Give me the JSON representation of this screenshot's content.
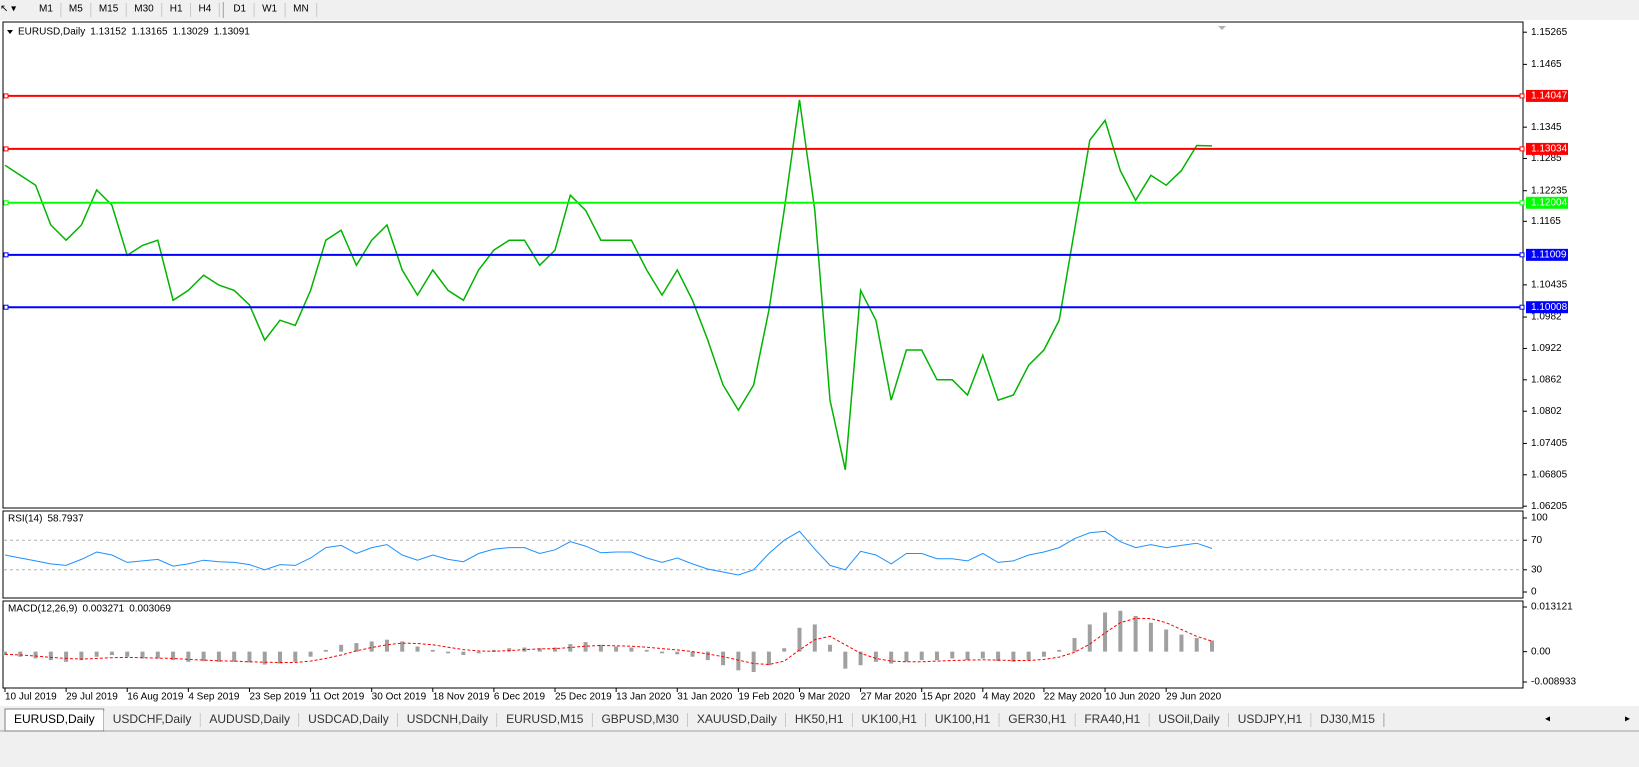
{
  "toolbar": {
    "timeframes": [
      "M1",
      "M5",
      "M15",
      "M30",
      "H1",
      "H4",
      "D1",
      "W1",
      "MN"
    ]
  },
  "chart_data": [
    {
      "type": "line",
      "title": "EURUSD,Daily",
      "ohlc": [
        1.13152,
        1.13165,
        1.13029,
        1.13091
      ],
      "categories": [
        "10 Jul 2019",
        null,
        null,
        null,
        "29 Jul 2019",
        null,
        null,
        null,
        "16 Aug 2019",
        null,
        null,
        null,
        "4 Sep 2019",
        null,
        null,
        null,
        "23 Sep 2019",
        null,
        null,
        null,
        "11 Oct 2019",
        null,
        null,
        null,
        "30 Oct 2019",
        null,
        null,
        null,
        "18 Nov 2019",
        null,
        null,
        null,
        "6 Dec 2019",
        null,
        null,
        null,
        "25 Dec 2019",
        null,
        null,
        null,
        "13 Jan 2020",
        null,
        null,
        null,
        "31 Jan 2020",
        null,
        null,
        null,
        "19 Feb 2020",
        null,
        null,
        null,
        "9 Mar 2020",
        null,
        null,
        null,
        "27 Mar 2020",
        null,
        null,
        null,
        "15 Apr 2020",
        null,
        null,
        null,
        "4 May 2020",
        null,
        null,
        null,
        "22 May 2020",
        null,
        null,
        null,
        "10 Jun 2020",
        null,
        null,
        null,
        "29 Jun 2020",
        null,
        null,
        null
      ],
      "series": [
        {
          "color": "#00b400",
          "values": [
            1.1272,
            1.1253,
            1.1234,
            1.1158,
            1.1129,
            1.1158,
            1.1225,
            1.1196,
            1.11,
            1.1119,
            1.1129,
            1.1014,
            1.1033,
            1.1062,
            1.1043,
            1.1033,
            1.1005,
            1.0938,
            1.0976,
            1.0966,
            1.1033,
            1.1129,
            1.1148,
            1.1081,
            1.1129,
            1.1158,
            1.1072,
            1.1024,
            1.1072,
            1.1033,
            1.1014,
            1.1072,
            1.111,
            1.1129,
            1.1129,
            1.1081,
            1.111,
            1.1215,
            1.1186,
            1.1129,
            1.1129,
            1.1129,
            1.1072,
            1.1024,
            1.1072,
            1.1014,
            1.0938,
            1.0852,
            1.0804,
            1.0852,
            1.0995,
            1.1186,
            1.1397,
            1.1186,
            1.0823,
            1.069,
            1.1033,
            1.0976,
            1.0823,
            1.0919,
            1.0919,
            1.0862,
            1.0862,
            1.0833,
            1.0909,
            1.0823,
            1.0833,
            1.089,
            1.0919,
            1.0976,
            1.1148,
            1.132,
            1.1358,
            1.1262,
            1.1205,
            1.1253,
            1.1234,
            1.1262,
            1.131,
            1.13091
          ]
        }
      ],
      "levels": [
        {
          "value": 1.14047,
          "color": "#ff0000"
        },
        {
          "value": 1.13034,
          "color": "#ff0000"
        },
        {
          "value": 1.12004,
          "color": "#00ff00"
        },
        {
          "value": 1.11009,
          "color": "#0000ff"
        },
        {
          "value": 1.10008,
          "color": "#0000ff"
        }
      ],
      "ylim": [
        1.0617,
        1.1546
      ],
      "yticks": [
        1.15265,
        1.1465,
        1.1345,
        1.1285,
        1.12235,
        1.1165,
        1.10435,
        1.0982,
        1.0922,
        1.0862,
        1.0802,
        1.07405,
        1.06805,
        1.06205
      ]
    },
    {
      "type": "line",
      "title": "RSI(14)",
      "current": 58.7937,
      "series": [
        {
          "color": "#1e90ff",
          "values": [
            50,
            46,
            42,
            38,
            36,
            44,
            54,
            50,
            40,
            42,
            44,
            35,
            38,
            43,
            41,
            40,
            37,
            30,
            37,
            36,
            46,
            60,
            63,
            52,
            60,
            64,
            50,
            43,
            50,
            44,
            41,
            52,
            58,
            60,
            60,
            52,
            57,
            68,
            62,
            53,
            54,
            54,
            46,
            40,
            46,
            38,
            31,
            27,
            23,
            30,
            52,
            70,
            82,
            58,
            36,
            30,
            55,
            50,
            38,
            52,
            52,
            45,
            45,
            42,
            52,
            40,
            42,
            50,
            54,
            60,
            72,
            80,
            82,
            68,
            60,
            64,
            60,
            63,
            66,
            58.7937
          ]
        }
      ],
      "ylim": [
        0,
        100
      ],
      "yticks": [
        100,
        70,
        30,
        0
      ],
      "levels": [
        70,
        30
      ]
    },
    {
      "type": "macd",
      "title": "MACD(12,26,9)",
      "current": [
        0.003271,
        0.003069
      ],
      "series": [
        {
          "color": "#a0a0a0",
          "values": [
            -0.001,
            -0.0015,
            -0.002,
            -0.0025,
            -0.003,
            -0.0025,
            -0.0015,
            -0.001,
            -0.0015,
            -0.002,
            -0.002,
            -0.0025,
            -0.003,
            -0.0028,
            -0.003,
            -0.003,
            -0.0032,
            -0.0038,
            -0.0035,
            -0.003,
            -0.0015,
            0.0005,
            0.002,
            0.0025,
            0.003,
            0.0035,
            0.003,
            0.0015,
            0.0005,
            -0.0005,
            -0.001,
            -0.0005,
            0.0005,
            0.001,
            0.0012,
            0.001,
            0.0012,
            0.0022,
            0.0028,
            0.002,
            0.0015,
            0.0012,
            0.0005,
            -0.0005,
            -0.0008,
            -0.0015,
            -0.0025,
            -0.004,
            -0.0055,
            -0.006,
            -0.004,
            0.001,
            0.007,
            0.008,
            0.002,
            -0.005,
            -0.004,
            -0.003,
            -0.0035,
            -0.003,
            -0.0025,
            -0.0025,
            -0.002,
            -0.0025,
            -0.002,
            -0.0028,
            -0.003,
            -0.0025,
            -0.0015,
            0.0005,
            0.004,
            0.008,
            0.0115,
            0.012,
            0.0105,
            0.0085,
            0.0065,
            0.005,
            0.004,
            0.003271
          ]
        },
        {
          "color": "#ff0000",
          "values": [
            -0.0008,
            -0.001,
            -0.0013,
            -0.0017,
            -0.002,
            -0.0022,
            -0.002,
            -0.0018,
            -0.0017,
            -0.0018,
            -0.0019,
            -0.002,
            -0.0023,
            -0.0025,
            -0.0027,
            -0.0028,
            -0.003,
            -0.0031,
            -0.0032,
            -0.0032,
            -0.0028,
            -0.002,
            -0.001,
            0.0002,
            0.0012,
            0.002,
            0.0025,
            0.0024,
            0.002,
            0.0013,
            0.0006,
            0.0002,
            0.0001,
            0.0003,
            0.0006,
            0.0008,
            0.0009,
            0.0012,
            0.0016,
            0.0018,
            0.0017,
            0.0016,
            0.0013,
            0.0009,
            0.0005,
            0,
            -0.0007,
            -0.0015,
            -0.0025,
            -0.0035,
            -0.0038,
            -0.0028,
            0.0005,
            0.0035,
            0.0045,
            0.002,
            -0.0005,
            -0.002,
            -0.0028,
            -0.003,
            -0.003,
            -0.0028,
            -0.0026,
            -0.0025,
            -0.0024,
            -0.0025,
            -0.0026,
            -0.0026,
            -0.0023,
            -0.0016,
            -0.0002,
            0.0022,
            0.0055,
            0.0085,
            0.0098,
            0.0097,
            0.0085,
            0.0065,
            0.0045,
            0.003069
          ]
        }
      ],
      "ylim": [
        -0.008933,
        0.013121
      ],
      "yticks": [
        0.013121,
        {
          "value": 0,
          "label": "0.00"
        },
        -0.008933
      ]
    }
  ],
  "tabs": [
    "EURUSD,Daily",
    "USDCHF,Daily",
    "AUDUSD,Daily",
    "USDCAD,Daily",
    "USDCNH,Daily",
    "EURUSD,M15",
    "GBPUSD,M30",
    "XAUUSD,Daily",
    "HK50,H1",
    "UK100,H1",
    "UK100,H1",
    "GER30,H1",
    "FRA40,H1",
    "USOil,Daily",
    "USDJPY,H1",
    "DJ30,M15"
  ]
}
